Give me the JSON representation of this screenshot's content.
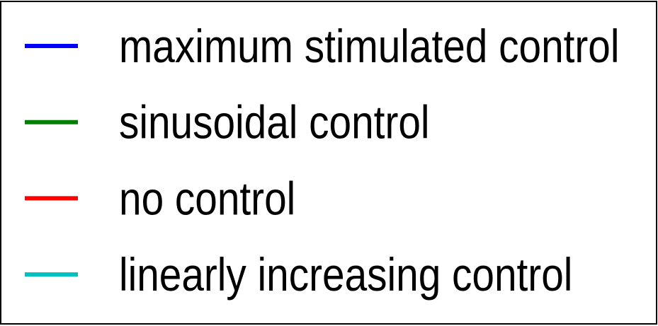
{
  "legend": {
    "entries": [
      {
        "label": "maximum stimulated control",
        "color": "#0000ff"
      },
      {
        "label": "sinusoidal control",
        "color": "#008000"
      },
      {
        "label": "no control",
        "color": "#ff0000"
      },
      {
        "label": "linearly increasing control",
        "color": "#00bfbf"
      }
    ]
  }
}
